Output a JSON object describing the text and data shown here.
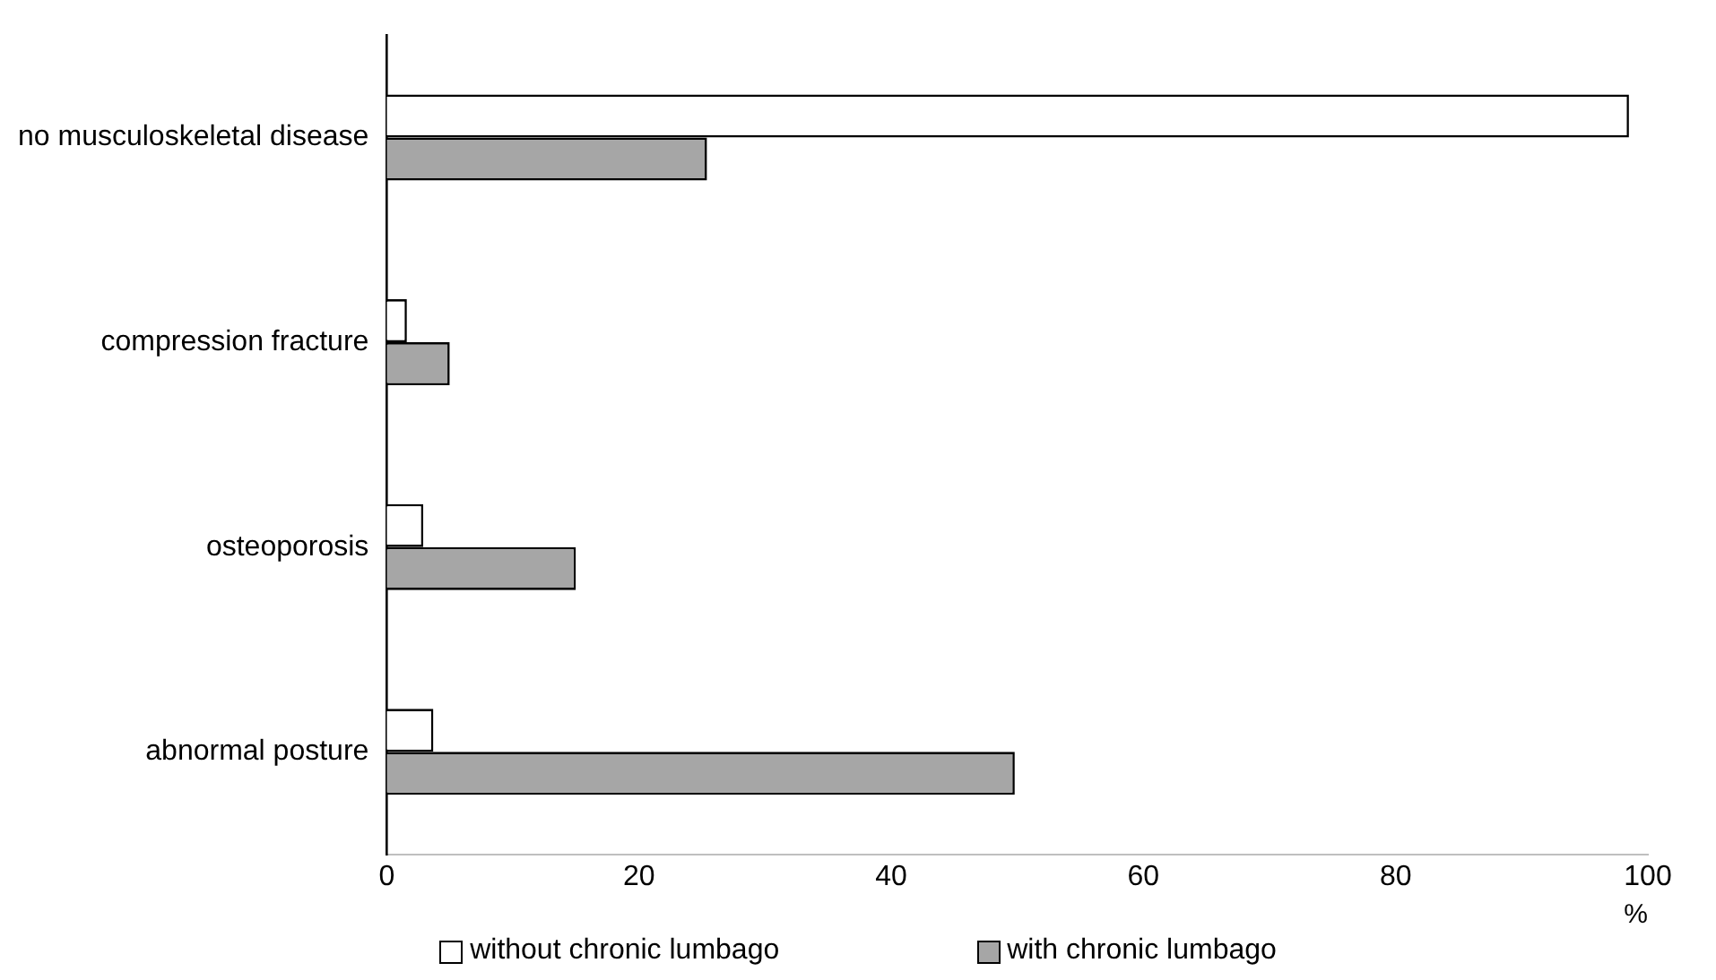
{
  "chart_data": {
    "type": "bar",
    "orientation": "horizontal",
    "categories": [
      "no musculoskeletal disease",
      "compression fracture",
      "osteoporosis",
      "abnormal posture"
    ],
    "series": [
      {
        "name": "without chronic lumbago",
        "color": "#ffffff",
        "values": [
          98.5,
          1.6,
          2.9,
          3.7
        ]
      },
      {
        "name": "with chronic lumbago",
        "color": "#a6a6a6",
        "values": [
          25.4,
          5.0,
          15.0,
          49.8
        ]
      }
    ],
    "xlabel": "%",
    "xlim": [
      0,
      100
    ],
    "xticks": [
      0,
      20,
      40,
      60,
      80,
      100
    ],
    "grid": false,
    "legend": "bottom"
  }
}
